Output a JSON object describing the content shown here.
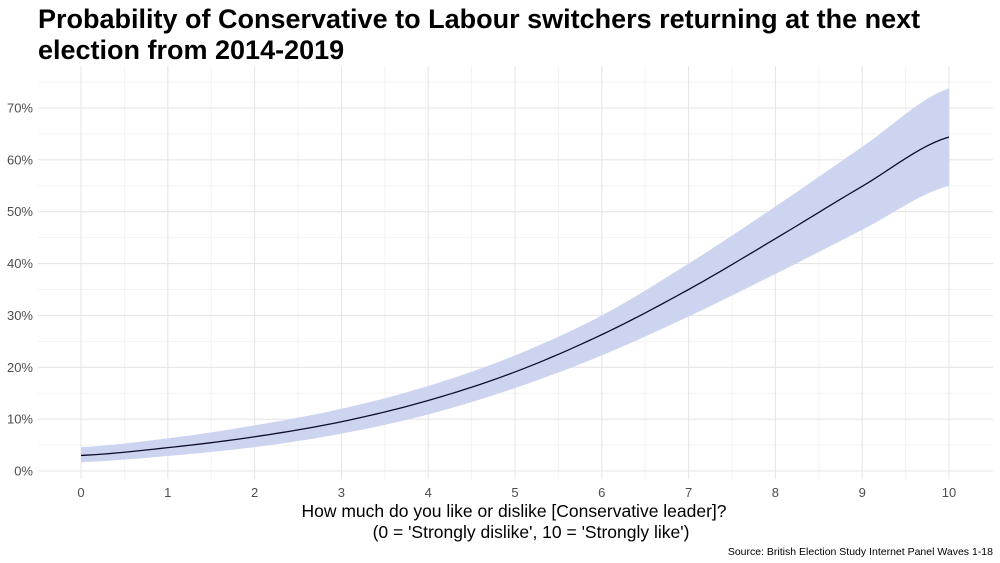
{
  "chart_data": {
    "type": "line",
    "title": "Probability of Conservative to Labour switchers returning at the next election from 2014-2019",
    "xlabel_lines": [
      "How much do you like or dislike [Conservative leader]?",
      "(0 = 'Strongly dislike', 10 = 'Strongly like')"
    ],
    "ylabel": "",
    "caption": "Source: British Election Study Internet Panel Waves 1-18",
    "xlim": [
      0,
      10
    ],
    "ylim": [
      0,
      70
    ],
    "x_ticks": [
      0,
      1,
      2,
      3,
      4,
      5,
      6,
      7,
      8,
      9,
      10
    ],
    "x_tick_labels": [
      "0",
      "1",
      "2",
      "3",
      "4",
      "5",
      "6",
      "7",
      "8",
      "9",
      "10"
    ],
    "y_ticks": [
      0,
      10,
      20,
      30,
      40,
      50,
      60,
      70
    ],
    "y_tick_labels": [
      "0%",
      "10%",
      "20%",
      "30%",
      "40%",
      "50%",
      "60%",
      "70%"
    ],
    "grid": true,
    "legend": "none",
    "x": [
      0,
      1,
      2,
      3,
      4,
      5,
      6,
      7,
      8,
      9,
      10
    ],
    "series": [
      {
        "estimate": [
          3.0,
          4.5,
          6.6,
          9.5,
          13.6,
          19.1,
          26.3,
          35.0,
          44.8,
          54.9,
          64.4
        ],
        "lower": [
          1.7,
          2.9,
          4.6,
          7.2,
          10.9,
          16.0,
          22.3,
          29.8,
          38.0,
          46.5,
          55.0
        ],
        "upper": [
          4.6,
          6.3,
          8.8,
          12.0,
          16.4,
          22.3,
          30.0,
          40.0,
          51.0,
          62.5,
          73.8
        ],
        "line_color": "#0d0d2b",
        "ribbon_color": "#cdd4f0"
      }
    ]
  }
}
